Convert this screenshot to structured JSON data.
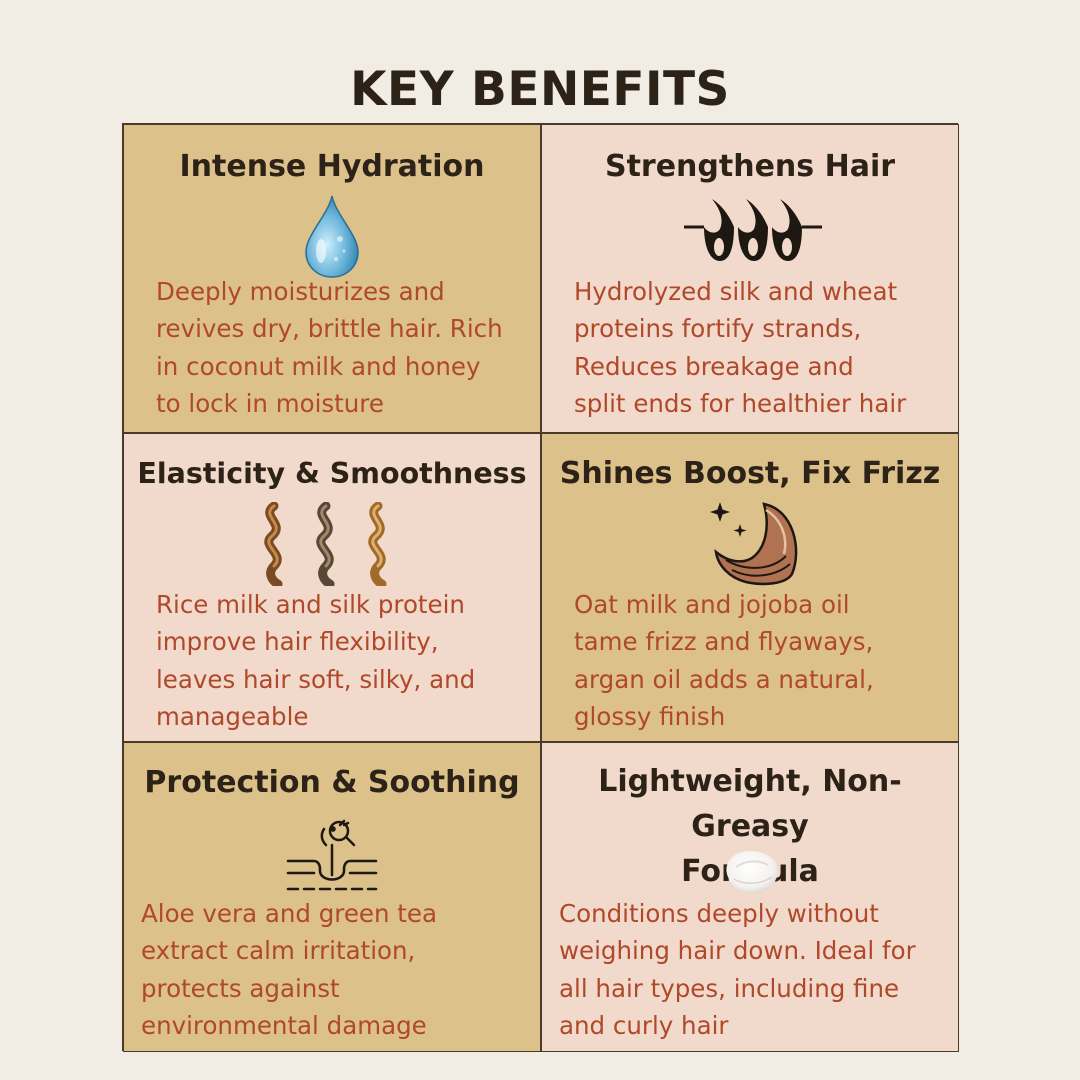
{
  "title": "KEY BENEFITS",
  "benefits": [
    {
      "title": "Intense Hydration",
      "text": "Deeply moisturizes and\nrevives dry, brittle hair. Rich\nin coconut milk and honey\nto lock in moisture",
      "icon": "water-drop-icon"
    },
    {
      "title": "Strengthens Hair",
      "text": "Hydrolyzed silk and wheat\nproteins fortify strands,\nReduces breakage and\nsplit ends for healthier hair",
      "icon": "hair-follicles-icon"
    },
    {
      "title": "Elasticity & Smoothness",
      "text": "Rice milk and silk protein\nimprove hair flexibility,\nleaves hair soft, silky, and\nmanageable",
      "icon": "hair-curls-icon"
    },
    {
      "title": "Shines Boost, Fix Frizz",
      "text": "Oat milk and jojoba oil\ntame frizz and flyaways,\nargan oil adds a natural,\nglossy finish",
      "icon": "shiny-hair-icon"
    },
    {
      "title": "Protection & Soothing",
      "text": "Aloe vera and green tea\nextract calm irritation,\nprotects against\nenvironmental damage",
      "icon": "scalp-follicle-icon"
    },
    {
      "title": "Lightweight, Non-Greasy\nFormula",
      "text": "Conditions deeply without\nweighing hair down. Ideal for\nall hair types, including fine\nand curly hair",
      "icon": "cream-swatch-icon"
    }
  ],
  "colors": {
    "background": "#f1ece4",
    "tan_cell": "#dcc18a",
    "pink_cell": "#f1dacb",
    "title_text": "#2d2218",
    "body_text": "#b0482a"
  }
}
